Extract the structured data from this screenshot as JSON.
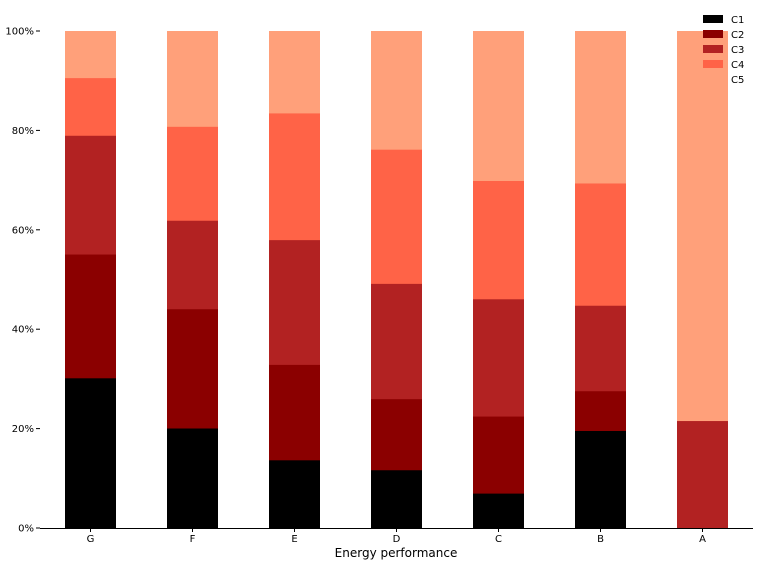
{
  "chart_data": {
    "type": "bar",
    "stacked": true,
    "normalized": true,
    "categories": [
      "G",
      "F",
      "E",
      "D",
      "C",
      "B",
      "A"
    ],
    "series": [
      {
        "name": "C1",
        "color": "#000000",
        "values": [
          30.2,
          20.1,
          13.7,
          11.7,
          7.0,
          19.6,
          0.0
        ]
      },
      {
        "name": "C2",
        "color": "#8b0000",
        "values": [
          24.9,
          24.0,
          19.2,
          14.3,
          15.5,
          8.0,
          0.0
        ]
      },
      {
        "name": "C3",
        "color": "#b22222",
        "values": [
          23.9,
          17.8,
          25.1,
          23.2,
          23.6,
          17.2,
          21.6
        ]
      },
      {
        "name": "C4",
        "color": "#ff6347",
        "values": [
          11.6,
          18.9,
          25.5,
          27.0,
          23.8,
          24.6,
          0.0
        ]
      },
      {
        "name": "C5",
        "color": "#ffa07a",
        "values": [
          9.4,
          19.2,
          16.5,
          23.8,
          30.1,
          30.6,
          78.4
        ]
      }
    ],
    "xlabel": "Energy performance",
    "ylabel": "",
    "ylim": [
      0,
      100
    ],
    "yticks": [
      "0%",
      "20%",
      "40%",
      "60%",
      "80%",
      "100%"
    ],
    "legend_position": "top-right",
    "grid": false
  }
}
